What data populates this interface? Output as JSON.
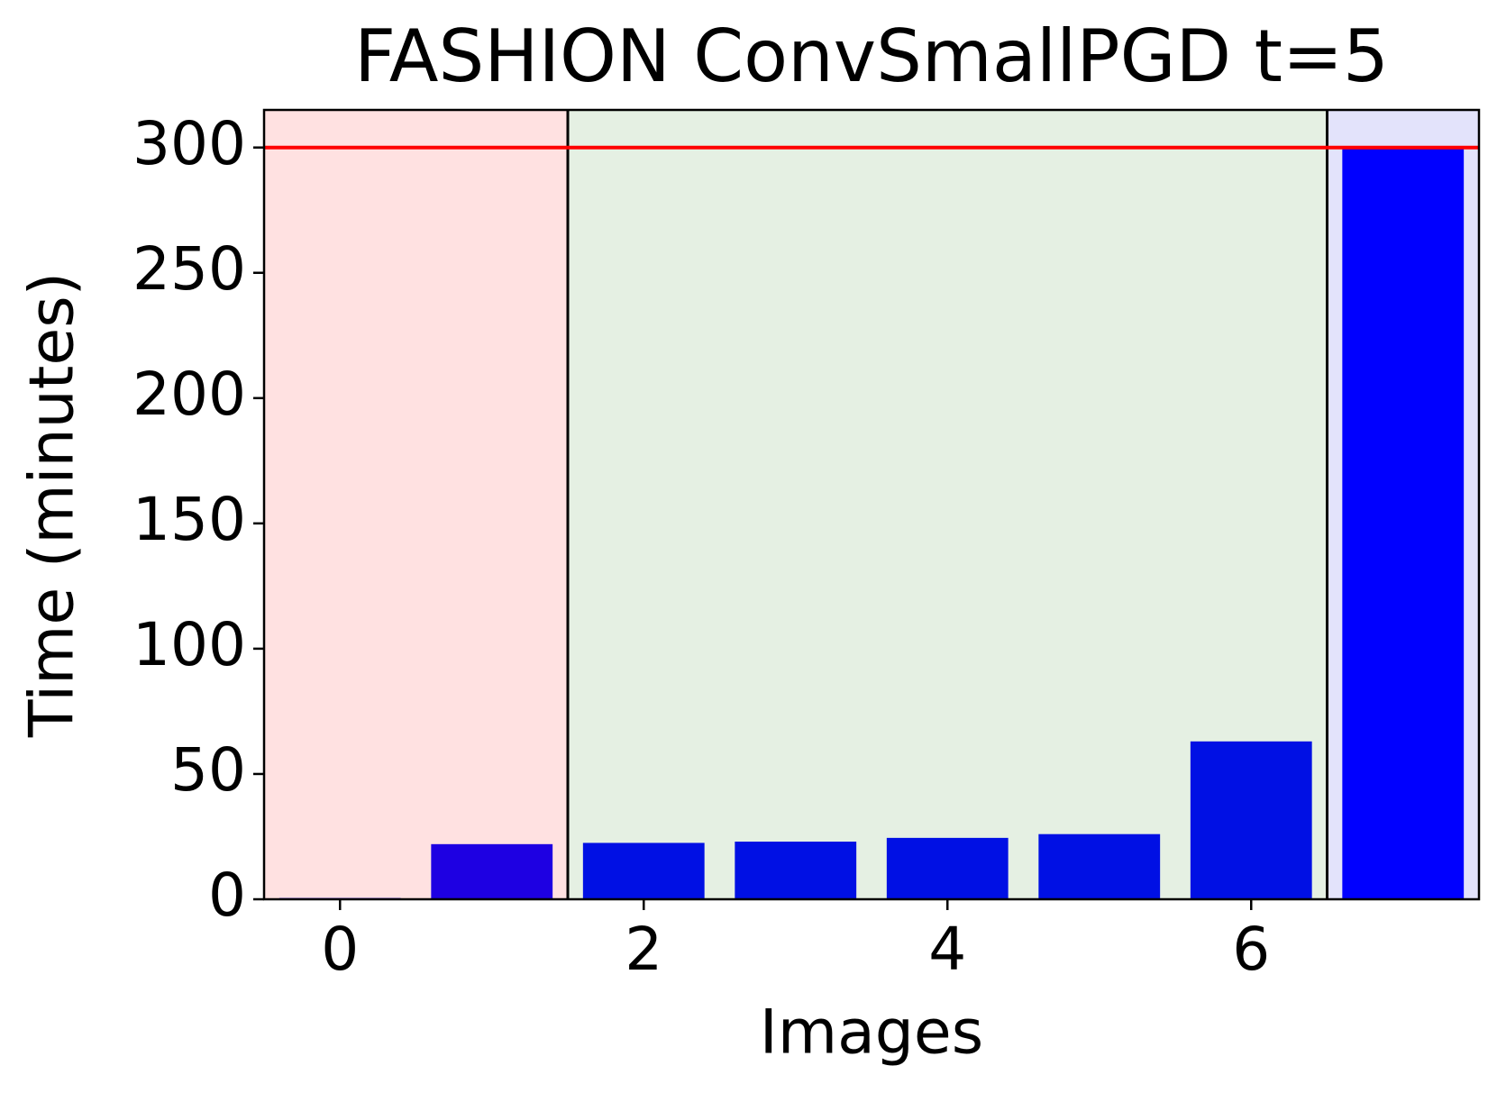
{
  "chart_data": {
    "type": "bar",
    "title": "FASHION ConvSmallPGD t=5",
    "x_label": "Images",
    "y_label": "Time (minutes)",
    "x": [
      0,
      1,
      2,
      3,
      4,
      5,
      6,
      7
    ],
    "values": [
      0.5,
      22,
      22.5,
      23,
      24.5,
      26,
      63,
      300
    ],
    "colors": [
      "#1a00e4",
      "#1e00e2",
      "#0010e4",
      "#0010e4",
      "#0010e4",
      "#0010e4",
      "#0010e4",
      "#0000ff"
    ],
    "bar_width": 0.8,
    "xlim": [
      -0.5,
      7.5
    ],
    "xticks": [
      0,
      2,
      4,
      6
    ],
    "ylim": [
      0,
      315
    ],
    "yticks": [
      0,
      50,
      100,
      150,
      200,
      250,
      300
    ],
    "regions": [
      {
        "xrange": [
          -0.5,
          1.5
        ],
        "color": "#ffe1e1"
      },
      {
        "xrange": [
          1.5,
          6.5
        ],
        "color": "#e5f0e3"
      },
      {
        "xrange": [
          6.5,
          7.5
        ],
        "color": "#e3e3fb"
      }
    ],
    "hline": {
      "value": 300,
      "color": "#ff0000"
    },
    "grid": false
  }
}
